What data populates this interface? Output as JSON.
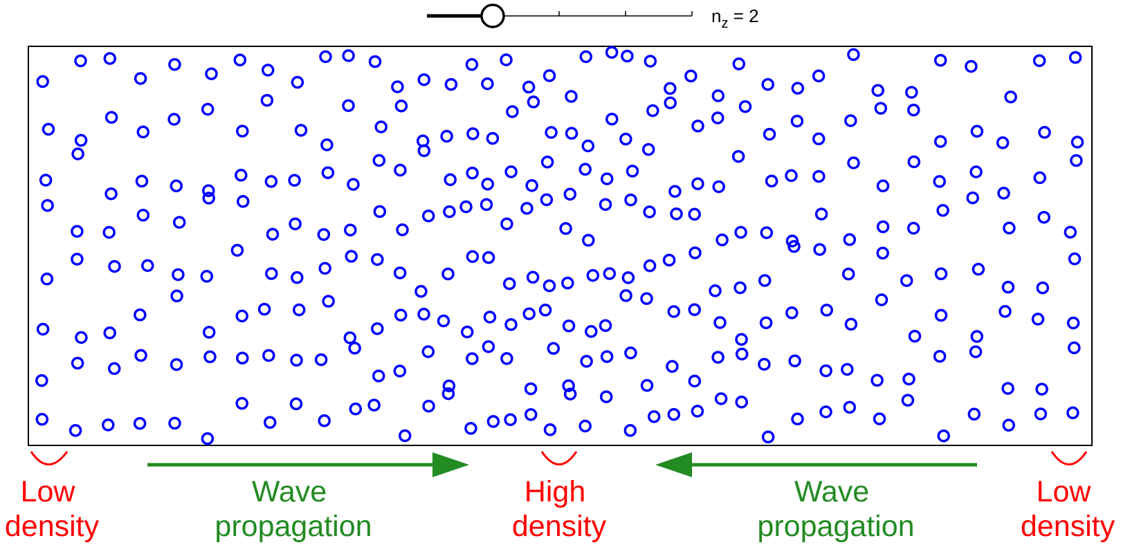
{
  "slider": {
    "symbol": "n",
    "subscript": "z",
    "equals": " = 2",
    "value": 2,
    "min": 1,
    "max": 5
  },
  "particles": {
    "color": "#0000ff",
    "count": 336
  },
  "labels": {
    "left_low": [
      "Low",
      "density"
    ],
    "center_high": [
      "High",
      "density"
    ],
    "right_low": [
      "Low",
      "density"
    ],
    "left_wave": [
      "Wave",
      "propagation"
    ],
    "right_wave": [
      "Wave",
      "propagation"
    ]
  },
  "colors": {
    "density": "#ff0000",
    "wave": "#228b22",
    "box": "#000000",
    "slider": "#000000"
  }
}
